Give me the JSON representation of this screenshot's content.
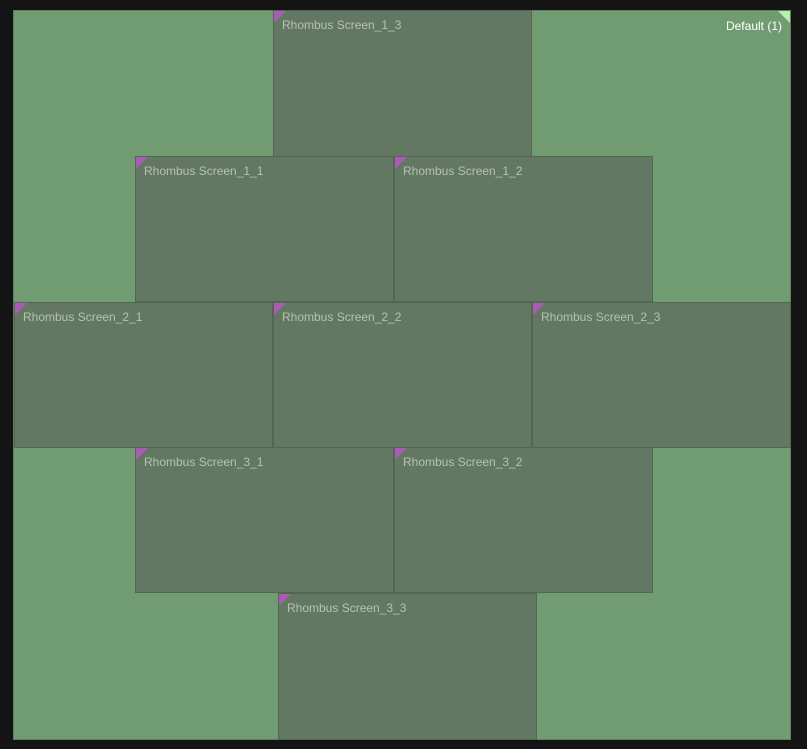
{
  "canvas": {
    "label": "Default (1)"
  },
  "screens": [
    {
      "label": "Rhombus Screen_1_3"
    },
    {
      "label": "Rhombus Screen_1_1"
    },
    {
      "label": "Rhombus Screen_1_2"
    },
    {
      "label": "Rhombus Screen_2_1"
    },
    {
      "label": "Rhombus Screen_2_2"
    },
    {
      "label": "Rhombus Screen_2_3"
    },
    {
      "label": "Rhombus Screen_3_1"
    },
    {
      "label": "Rhombus Screen_3_2"
    },
    {
      "label": "Rhombus Screen_3_3"
    }
  ],
  "colors": {
    "background": "#141414",
    "canvas": "#719c72",
    "screen": "#637862",
    "screen_marker": "#a95bb6",
    "canvas_marker": "#b6f0b0"
  }
}
